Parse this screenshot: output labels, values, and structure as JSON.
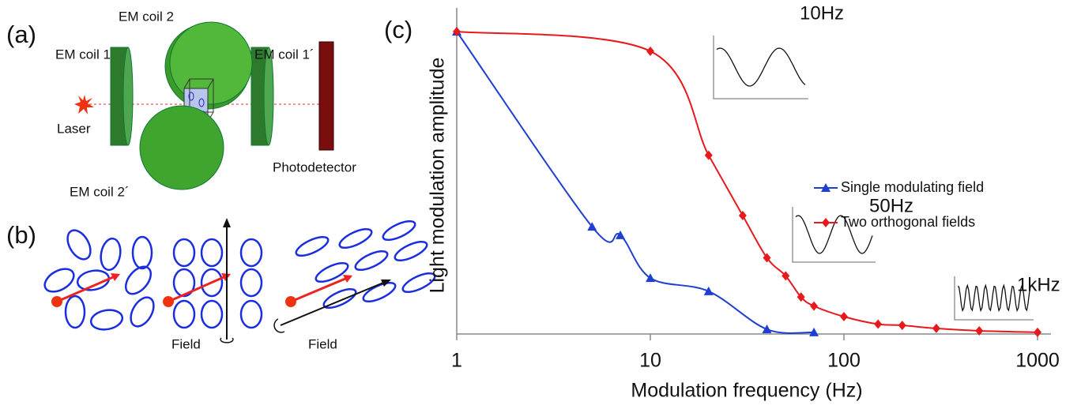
{
  "diagram": {
    "a": {
      "label": "(a)",
      "em_coil_2": "EM coil 2",
      "em_coil_1": "EM coil 1",
      "em_coil_1p": "EM coil 1´",
      "laser": "Laser",
      "photodetector": "Photodetector",
      "em_coil_2p": "EM coil 2´"
    },
    "b": {
      "label": "(b)",
      "field_1": "Field",
      "field_2": "Field"
    },
    "c": {
      "label": "(c)"
    }
  },
  "chart_data": {
    "type": "line",
    "x_label": "Modulation frequency (Hz)",
    "y_label": "Light modulation amplitude",
    "xscale": "log",
    "xlim": [
      1,
      1000
    ],
    "xticks": [
      1,
      10,
      100,
      1000
    ],
    "ylim": [
      0,
      1
    ],
    "smooth": true,
    "legend": "right",
    "annotations": [
      "10Hz",
      "50Hz",
      "1kHz"
    ],
    "series": [
      {
        "name": "Single modulating field",
        "color": "#1f3fd0",
        "marker": "triangle",
        "x": [
          1,
          5,
          7,
          10,
          20,
          40,
          70
        ],
        "values": [
          1.0,
          0.353,
          0.325,
          0.183,
          0.139,
          0.013,
          0.003
        ]
      },
      {
        "name": "Two orthogonal fields",
        "color": "#e8191c",
        "marker": "diamond",
        "x": [
          1,
          10,
          20,
          30,
          40,
          50,
          60,
          70,
          100,
          150,
          200,
          300,
          500,
          1000
        ],
        "values": [
          1.0,
          0.935,
          0.59,
          0.39,
          0.25,
          0.19,
          0.12,
          0.09,
          0.055,
          0.03,
          0.026,
          0.016,
          0.008,
          0.003
        ]
      }
    ]
  }
}
